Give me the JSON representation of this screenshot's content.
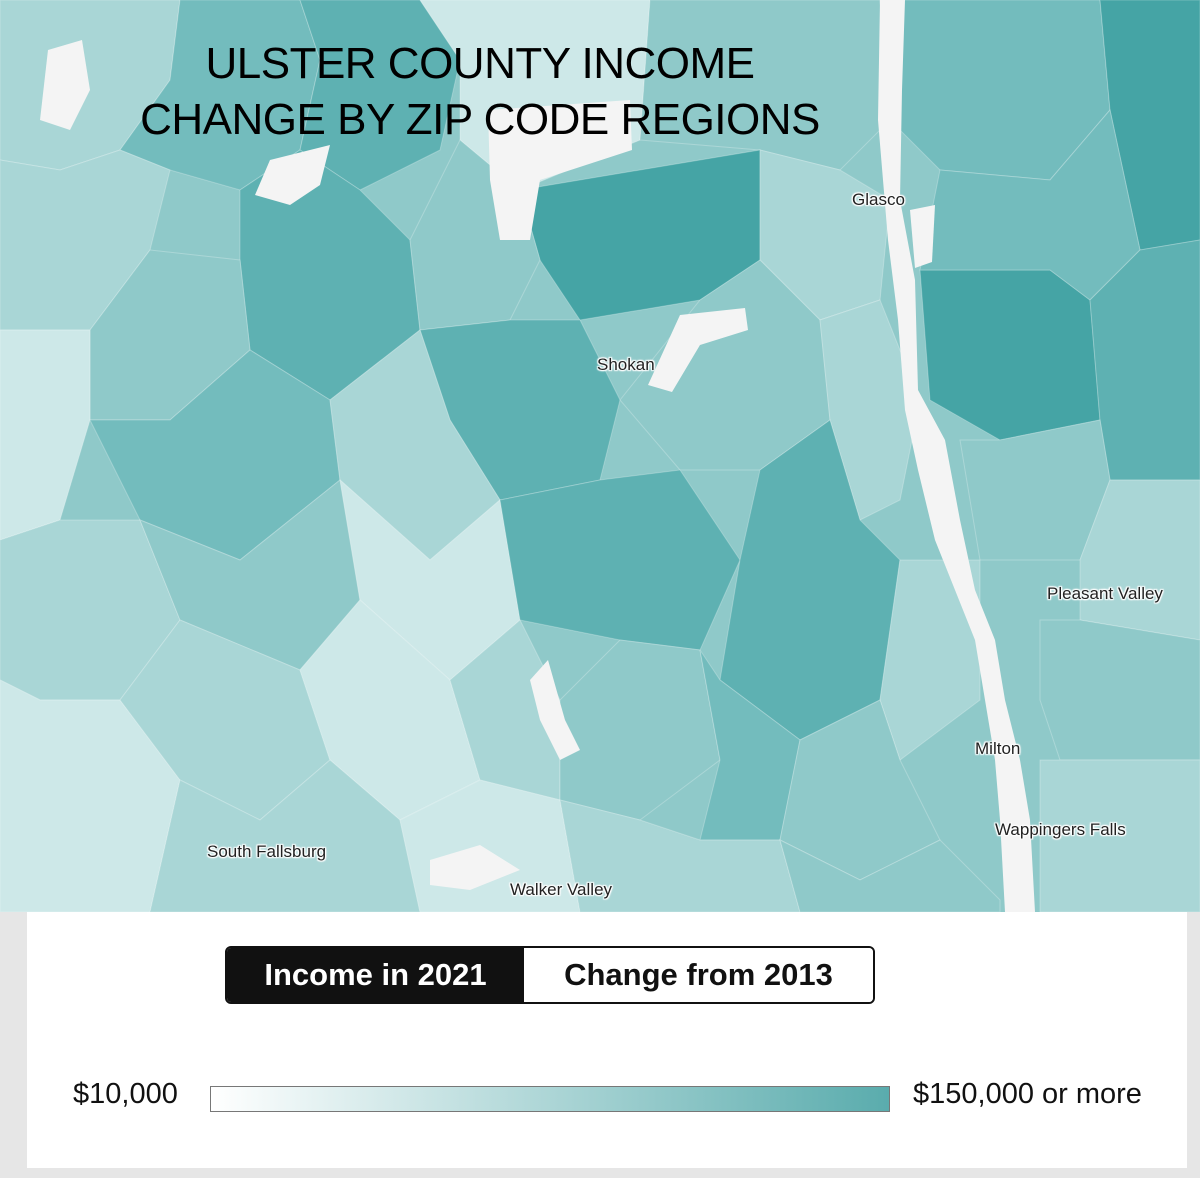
{
  "map": {
    "title_line1": "ULSTER COUNTY INCOME",
    "title_line2": "CHANGE BY ZIP CODE REGIONS",
    "places": {
      "glasco": "Glasco",
      "shokan": "Shokan",
      "pleasant_valley": "Pleasant Valley",
      "milton": "Milton",
      "wappingers_falls": "Wappingers Falls",
      "south_fallsburg": "South Fallsburg",
      "walker_valley": "Walker Valley"
    },
    "colors": {
      "lightest": "#cde8e8",
      "light": "#a9d6d6",
      "mid": "#8fc9c9",
      "mid_dark": "#73bcbd",
      "dark": "#5eb1b2",
      "darkest": "#45a4a5",
      "no_data": "#f4f4f4"
    }
  },
  "legend": {
    "tab_active": "Income in 2021",
    "tab_inactive": "Change from 2013",
    "scale_min": "$10,000",
    "scale_max": "$150,000 or more",
    "scale_color_start": "#ffffff",
    "scale_color_end": "#5aacad"
  }
}
